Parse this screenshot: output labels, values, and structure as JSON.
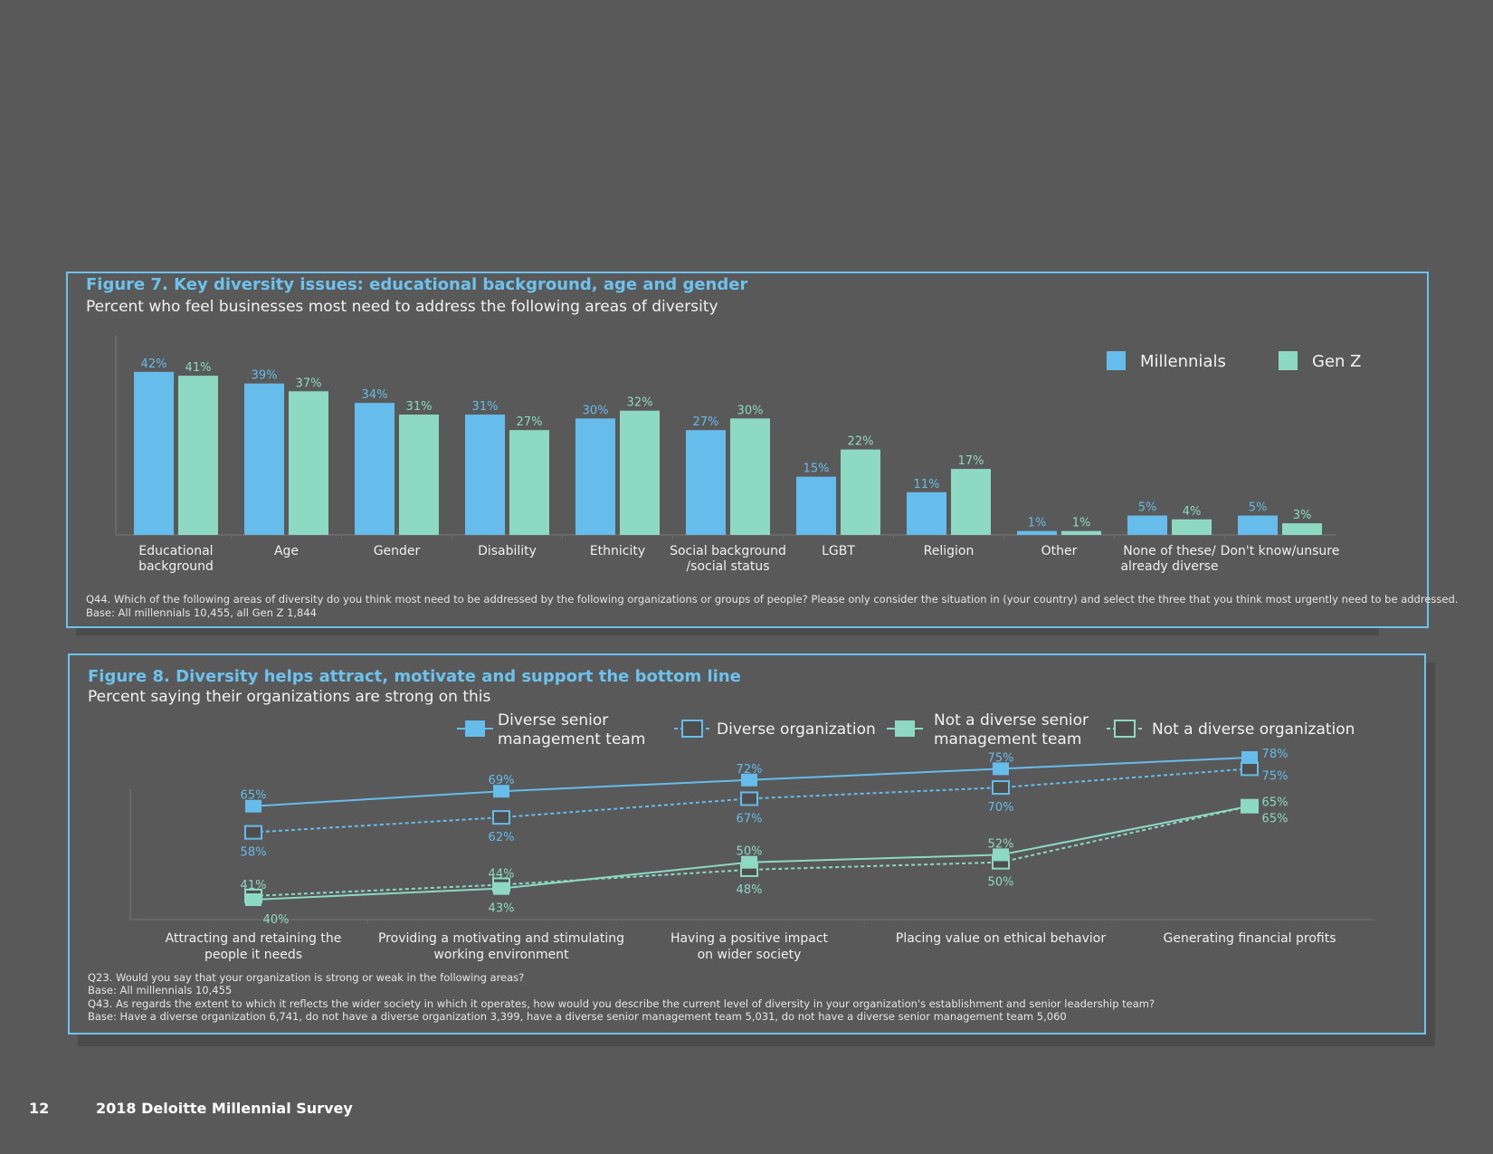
{
  "colors": {
    "millennials": "#66bcea",
    "genz": "#8dd9c1",
    "blue_label": "#66bcea",
    "green_label": "#8dd9c1",
    "border": "#6dc2ee",
    "axis": "#6e6e6e",
    "background": "#595959",
    "marker_fill_dark": "#4e4e4e"
  },
  "figure7": {
    "title": "Figure 7. Key diversity issues: educational background, age and gender",
    "subtitle": "Percent who feel businesses most need to address the following areas of diversity",
    "note_line1": "Q44. Which of the following areas of diversity do you think most need to be addressed by the following organizations or groups of people? Please only consider the situation in (your country) and select the three that you think most urgently need to be addressed.",
    "note_line2": "Base: All millennials 10,455, all Gen Z 1,844"
  },
  "figure8": {
    "title": "Figure 8. Diversity helps attract, motivate and support the bottom line",
    "subtitle": "Percent saying their organizations are strong on this",
    "note_lines": [
      "Q23. Would you say that your organization is strong or weak in the following areas?",
      "Base: All millennials 10,455",
      "Q43. As regards the extent to which it reflects the wider society in which it operates, how would you describe the current level of diversity in your organization's establishment and senior leadership team?",
      "Base: Have a diverse organization 6,741, do not have a diverse organization 3,399, have a diverse senior management team 5,031, do not have a diverse senior management team 5,060"
    ]
  },
  "footer": {
    "page_number": "12",
    "publication": "2018 Deloitte Millennial Survey"
  },
  "chart_data": [
    {
      "type": "bar",
      "categories": [
        [
          "Educational",
          "background"
        ],
        [
          "Age"
        ],
        [
          "Gender"
        ],
        [
          "Disability"
        ],
        [
          "Ethnicity"
        ],
        [
          "Social background",
          "/social status"
        ],
        [
          "LGBT"
        ],
        [
          "Religion"
        ],
        [
          "Other"
        ],
        [
          "None of these/",
          "already diverse"
        ],
        [
          "Don't know/unsure"
        ]
      ],
      "series": [
        {
          "name": "Millennials",
          "values": [
            42,
            39,
            34,
            31,
            30,
            27,
            15,
            11,
            1,
            5,
            5
          ]
        },
        {
          "name": "Gen Z",
          "values": [
            41,
            37,
            31,
            27,
            32,
            30,
            22,
            17,
            1,
            4,
            3
          ]
        }
      ],
      "ylim": [
        0,
        45
      ],
      "legend_position": "top-right",
      "grid": false
    },
    {
      "type": "line",
      "categories": [
        [
          "Attracting and retaining the",
          "people it needs"
        ],
        [
          "Providing a motivating and stimulating",
          "working environment"
        ],
        [
          "Having a positive impact",
          "on wider society"
        ],
        [
          "Placing value on ethical behavior"
        ],
        [
          "Generating financial profits"
        ]
      ],
      "series": [
        {
          "name": [
            "Diverse senior",
            "management team"
          ],
          "values": [
            65,
            69,
            72,
            75,
            78
          ]
        },
        {
          "name": [
            "Diverse organization"
          ],
          "values": [
            58,
            62,
            67,
            70,
            75
          ]
        },
        {
          "name": [
            "Not a diverse senior",
            "management team"
          ],
          "values": [
            40,
            43,
            50,
            52,
            65
          ]
        },
        {
          "name": [
            "Not a diverse organization"
          ],
          "values": [
            41,
            44,
            48,
            50,
            65
          ]
        }
      ],
      "ylim": [
        35,
        82
      ],
      "legend_position": "top",
      "grid": false
    }
  ]
}
